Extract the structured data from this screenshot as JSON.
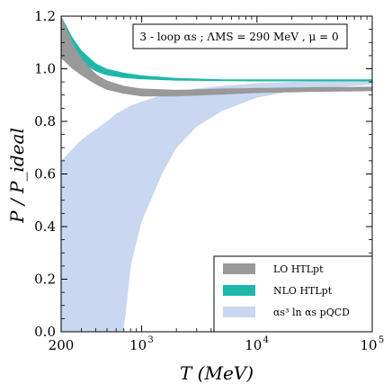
{
  "chart_data": {
    "type": "area",
    "xscale": "log",
    "xlabel": "T (MeV)",
    "ylabel": "P / P_ideal",
    "xlim": [
      200,
      100000
    ],
    "ylim": [
      0.0,
      1.2
    ],
    "x_ticks": [
      {
        "value": 200,
        "label": "200"
      },
      {
        "value": 1000,
        "label": "10",
        "exp": "3"
      },
      {
        "value": 10000,
        "label": "10",
        "exp": "4"
      },
      {
        "value": 100000,
        "label": "10",
        "exp": "5"
      }
    ],
    "y_ticks": [
      {
        "value": 0.0,
        "label": "0.0"
      },
      {
        "value": 0.2,
        "label": "0.2"
      },
      {
        "value": 0.4,
        "label": "0.4"
      },
      {
        "value": 0.6,
        "label": "0.6"
      },
      {
        "value": 0.8,
        "label": "0.8"
      },
      {
        "value": 1.0,
        "label": "1.0"
      },
      {
        "value": 1.2,
        "label": "1.2"
      }
    ],
    "annotation": "3 - loop αs ; ΛMS = 290 MeV , μ = 0",
    "legend_position": "bottom-right",
    "series": [
      {
        "name": "αs³ ln αs pQCD",
        "color": "#c9d7f0",
        "x": [
          200,
          300,
          400,
          500,
          600,
          700,
          800,
          1000,
          1500,
          2000,
          3000,
          5000,
          10000,
          20000,
          50000,
          100000
        ],
        "upper": [
          0.65,
          0.73,
          0.77,
          0.8,
          0.83,
          0.845,
          0.86,
          0.875,
          0.9,
          0.91,
          0.925,
          0.935,
          0.945,
          0.95,
          0.955,
          0.96
        ],
        "lower": [
          0.0,
          0.0,
          0.0,
          0.0,
          0.0,
          0.0,
          0.25,
          0.42,
          0.6,
          0.7,
          0.78,
          0.84,
          0.89,
          0.915,
          0.93,
          0.94
        ]
      },
      {
        "name": "NLO HTLpt",
        "color": "#1fb8a8",
        "x": [
          200,
          250,
          300,
          400,
          500,
          700,
          1000,
          2000,
          5000,
          10000,
          30000,
          100000
        ],
        "upper": [
          1.2,
          1.12,
          1.07,
          1.02,
          1.0,
          0.985,
          0.975,
          0.965,
          0.96,
          0.96,
          0.96,
          0.96
        ],
        "lower": [
          1.13,
          1.06,
          1.025,
          0.99,
          0.975,
          0.965,
          0.96,
          0.955,
          0.953,
          0.952,
          0.952,
          0.952
        ]
      },
      {
        "name": "LO HTLpt",
        "color": "#999999",
        "x": [
          200,
          250,
          300,
          400,
          500,
          700,
          1000,
          2000,
          3000,
          5000,
          10000,
          30000,
          100000
        ],
        "upper": [
          1.2,
          1.1,
          1.04,
          0.98,
          0.955,
          0.935,
          0.925,
          0.92,
          0.922,
          0.925,
          0.927,
          0.93,
          0.932
        ],
        "lower": [
          1.04,
          1.0,
          0.975,
          0.94,
          0.92,
          0.905,
          0.895,
          0.895,
          0.898,
          0.902,
          0.908,
          0.912,
          0.915
        ]
      }
    ],
    "legend": [
      {
        "label": "LO HTLpt",
        "color": "#999999"
      },
      {
        "label": "NLO HTLpt",
        "color": "#1fb8a8"
      },
      {
        "label": "αs³ ln αs pQCD",
        "color": "#c9d7f0"
      }
    ]
  }
}
